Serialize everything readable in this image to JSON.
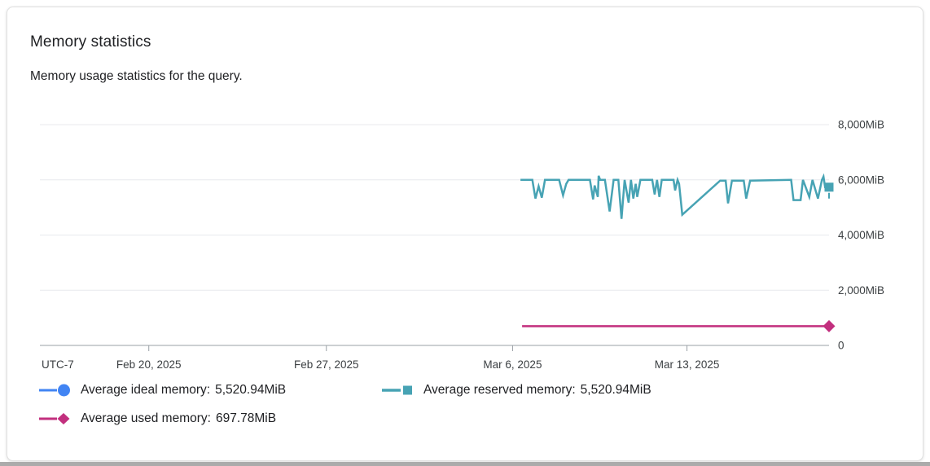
{
  "card": {
    "title": "Memory statistics",
    "subtitle": "Memory usage statistics for the query."
  },
  "chart_data": {
    "type": "line",
    "title": "Memory statistics",
    "y_unit": "MiB",
    "ylim": [
      0,
      8000
    ],
    "grid": true,
    "legend_position": "bottom",
    "colors": {
      "grid": "#e8eaed",
      "axis": "#9aa0a6",
      "tick_text": "#3c4043"
    },
    "y_ticks": [
      {
        "value": 8000,
        "label": "8,000MiB"
      },
      {
        "value": 6000,
        "label": "6,000MiB"
      },
      {
        "value": 4000,
        "label": "4,000MiB"
      },
      {
        "value": 2000,
        "label": "2,000MiB"
      },
      {
        "value": 0,
        "label": "0"
      }
    ],
    "x_axis": {
      "timezone_label": "UTC-7",
      "ticks": [
        {
          "label": "Feb 20, 2025",
          "pos": 0.138
        },
        {
          "label": "Feb 27, 2025",
          "pos": 0.363
        },
        {
          "label": "Mar 6, 2025",
          "pos": 0.599
        },
        {
          "label": "Mar 13, 2025",
          "pos": 0.82
        }
      ]
    },
    "series": [
      {
        "legend_label": "Average ideal memory:",
        "legend_value": "5,520.94MiB",
        "average_mib": 5520.94,
        "color": "#4184f3",
        "marker": "circle",
        "points": []
      },
      {
        "legend_label": "Average reserved memory:",
        "legend_value": "5,520.94MiB",
        "average_mib": 5520.94,
        "color": "#47a3b4",
        "marker": "square",
        "points": [
          [
            0.609,
            6000
          ],
          [
            0.624,
            6000
          ],
          [
            0.628,
            5323
          ],
          [
            0.632,
            5765
          ],
          [
            0.636,
            5353
          ],
          [
            0.64,
            6000
          ],
          [
            0.658,
            6000
          ],
          [
            0.663,
            5441
          ],
          [
            0.667,
            5853
          ],
          [
            0.67,
            6000
          ],
          [
            0.697,
            6000
          ],
          [
            0.701,
            5294
          ],
          [
            0.703,
            5794
          ],
          [
            0.707,
            5382
          ],
          [
            0.708,
            6147
          ],
          [
            0.71,
            6000
          ],
          [
            0.716,
            6000
          ],
          [
            0.722,
            4853
          ],
          [
            0.727,
            6000
          ],
          [
            0.733,
            6000
          ],
          [
            0.737,
            4588
          ],
          [
            0.741,
            6000
          ],
          [
            0.746,
            5176
          ],
          [
            0.749,
            6000
          ],
          [
            0.752,
            5323
          ],
          [
            0.755,
            5853
          ],
          [
            0.757,
            5382
          ],
          [
            0.761,
            6000
          ],
          [
            0.776,
            6000
          ],
          [
            0.779,
            5471
          ],
          [
            0.782,
            6000
          ],
          [
            0.785,
            5382
          ],
          [
            0.788,
            6000
          ],
          [
            0.803,
            6000
          ],
          [
            0.805,
            5618
          ],
          [
            0.808,
            6000
          ],
          [
            0.81,
            5853
          ],
          [
            0.814,
            4735
          ],
          [
            0.862,
            5971
          ],
          [
            0.869,
            5971
          ],
          [
            0.872,
            5147
          ],
          [
            0.877,
            5971
          ],
          [
            0.892,
            5971
          ],
          [
            0.895,
            5323
          ],
          [
            0.9,
            5971
          ],
          [
            0.952,
            6000
          ],
          [
            0.955,
            5265
          ],
          [
            0.964,
            5265
          ],
          [
            0.967,
            6000
          ],
          [
            0.975,
            5382
          ],
          [
            0.979,
            6000
          ],
          [
            0.986,
            5323
          ],
          [
            0.991,
            6000
          ],
          [
            0.993,
            6118
          ],
          [
            0.995,
            5735
          ],
          [
            1.0,
            5735
          ]
        ]
      },
      {
        "legend_label": "Average used memory:",
        "legend_value": "697.78MiB",
        "average_mib": 697.78,
        "color": "#c22f7e",
        "marker": "diamond",
        "points": [
          [
            0.611,
            698
          ],
          [
            1.0,
            698
          ]
        ]
      }
    ]
  }
}
